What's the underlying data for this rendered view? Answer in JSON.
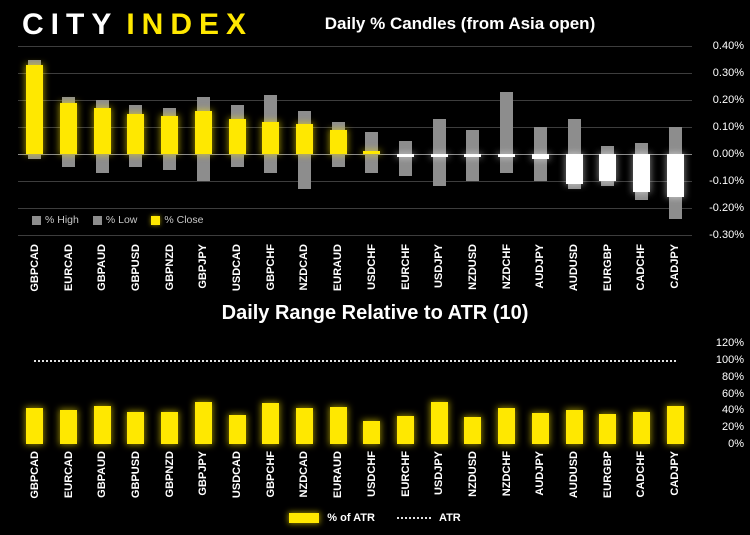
{
  "brand": {
    "city": "CITY",
    "index": "INDEX"
  },
  "colors": {
    "background": "#000000",
    "accent_yellow": "#FFE800",
    "range_bar": "#8D8D8D",
    "close_up": "#FFE800",
    "close_down": "#FFFFFF",
    "grid": "#3D3D3D",
    "text": "#FFFFFF"
  },
  "chart_data": [
    {
      "type": "bar",
      "title": "Daily % Candles (from Asia open)",
      "categories": [
        "GBPCAD",
        "EURCAD",
        "GBPAUD",
        "GBPUSD",
        "GBPNZD",
        "GBPJPY",
        "USDCAD",
        "GBPCHF",
        "NZDCAD",
        "EURAUD",
        "USDCHF",
        "EURCHF",
        "USDJPY",
        "NZDUSD",
        "NZDCHF",
        "AUDJPY",
        "AUDUSD",
        "EURGBP",
        "CADCHF",
        "CADJPY"
      ],
      "series": [
        {
          "name": "% High",
          "values": [
            0.35,
            0.21,
            0.2,
            0.18,
            0.17,
            0.21,
            0.18,
            0.22,
            0.16,
            0.12,
            0.08,
            0.05,
            0.13,
            0.09,
            0.23,
            0.1,
            0.13,
            0.03,
            0.04,
            0.1
          ]
        },
        {
          "name": "% Low",
          "values": [
            -0.02,
            -0.05,
            -0.07,
            -0.05,
            -0.06,
            -0.1,
            -0.05,
            -0.07,
            -0.13,
            -0.05,
            -0.07,
            -0.08,
            -0.12,
            -0.1,
            -0.07,
            -0.1,
            -0.13,
            -0.12,
            -0.17,
            -0.24
          ]
        },
        {
          "name": "% Close",
          "values": [
            0.33,
            0.19,
            0.17,
            0.15,
            0.14,
            0.16,
            0.13,
            0.12,
            0.11,
            0.09,
            0.01,
            -0.01,
            -0.01,
            -0.01,
            -0.01,
            -0.02,
            -0.11,
            -0.1,
            -0.14,
            -0.16
          ]
        }
      ],
      "ylim": [
        -0.3,
        0.4
      ],
      "y_ticks": [
        {
          "label": "0.40%",
          "value": 0.4
        },
        {
          "label": "0.30%",
          "value": 0.3
        },
        {
          "label": "0.20%",
          "value": 0.2
        },
        {
          "label": "0.10%",
          "value": 0.1
        },
        {
          "label": "0.00%",
          "value": 0.0
        },
        {
          "label": "-0.10%",
          "value": -0.1
        },
        {
          "label": "-0.20%",
          "value": -0.2
        },
        {
          "label": "-0.30%",
          "value": -0.3
        }
      ],
      "grid": true,
      "legend_position": "inside-bottom-left"
    },
    {
      "type": "bar",
      "title": "Daily Range Relative to ATR (10)",
      "categories": [
        "GBPCAD",
        "EURCAD",
        "GBPAUD",
        "GBPUSD",
        "GBPNZD",
        "GBPJPY",
        "USDCAD",
        "GBPCHF",
        "NZDCAD",
        "EURAUD",
        "USDCHF",
        "EURCHF",
        "USDJPY",
        "NZDUSD",
        "NZDCHF",
        "AUDJPY",
        "AUDUSD",
        "EURGBP",
        "CADCHF",
        "CADJPY"
      ],
      "series": [
        {
          "name": "% of ATR",
          "values": [
            43,
            40,
            45,
            38,
            38,
            50,
            35,
            49,
            43,
            44,
            27,
            33,
            50,
            32,
            43,
            37,
            40,
            36,
            38,
            45
          ]
        }
      ],
      "atr_line": 100,
      "ylim": [
        0,
        120
      ],
      "y_ticks": [
        {
          "label": "120%",
          "value": 120
        },
        {
          "label": "100%",
          "value": 100
        },
        {
          "label": "80%",
          "value": 80
        },
        {
          "label": "60%",
          "value": 60
        },
        {
          "label": "40%",
          "value": 40
        },
        {
          "label": "20%",
          "value": 20
        },
        {
          "label": "0%",
          "value": 0
        }
      ],
      "grid": false,
      "legend": {
        "bar_label": "% of ATR",
        "line_label": "ATR"
      }
    }
  ]
}
